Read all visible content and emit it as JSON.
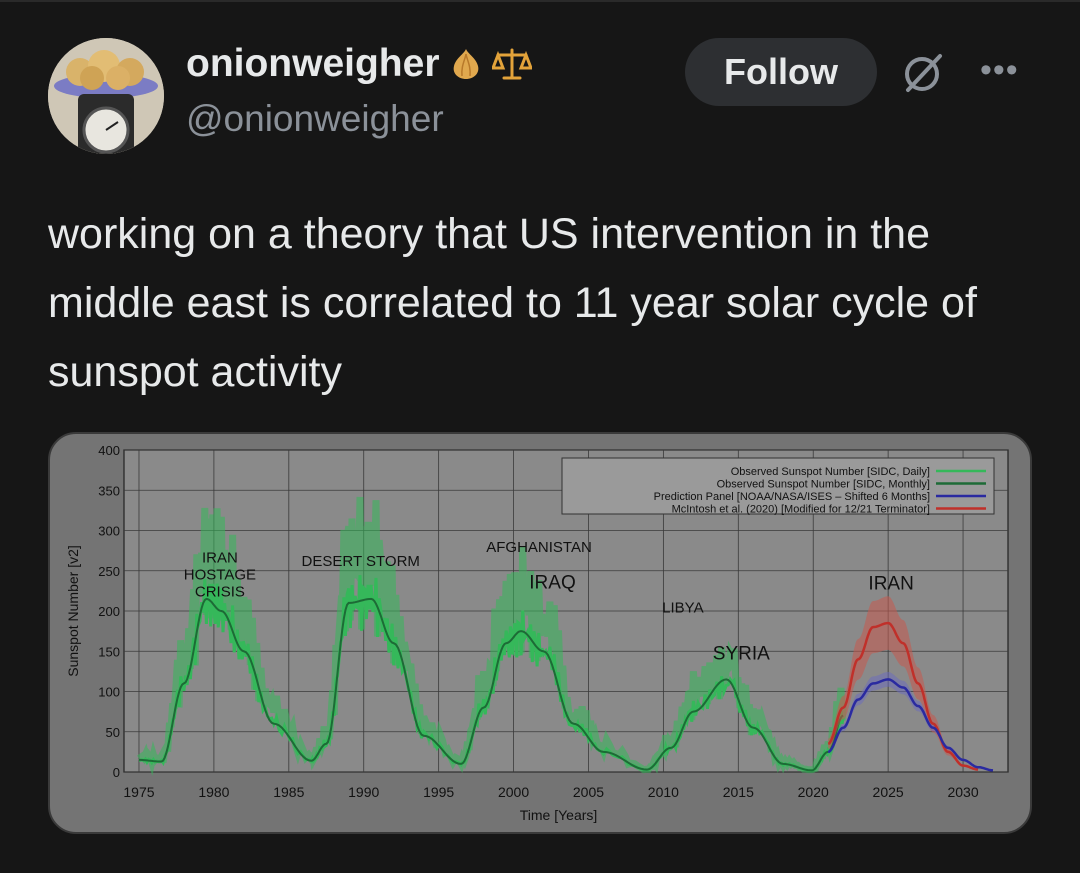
{
  "author": {
    "name": "onionweigher",
    "handle": "@onionweigher",
    "badges": [
      "onion-icon",
      "scales-icon"
    ]
  },
  "actions": {
    "follow_label": "Follow",
    "grok_icon": "grok-icon",
    "more_icon": "more-icon"
  },
  "tweet": {
    "text": "working on a theory that US intervention in the middle east is correlated to 11 year solar cycle of sunspot activity"
  },
  "chart_data": {
    "type": "line",
    "xlabel": "Time [Years]",
    "ylabel": "Sunspot Number [v2]",
    "xlim": [
      1974,
      2033
    ],
    "ylim": [
      0,
      400
    ],
    "x_ticks": [
      "1975",
      "1980",
      "1985",
      "1990",
      "1995",
      "2000",
      "2005",
      "2010",
      "2015",
      "2020",
      "2025",
      "2030"
    ],
    "y_ticks": [
      "0",
      "50",
      "100",
      "150",
      "200",
      "250",
      "300",
      "350",
      "400"
    ],
    "grid": true,
    "legend_position": "top-right",
    "legend": [
      {
        "label": "Observed Sunspot Number [SIDC, Daily]",
        "color": "#35b85a"
      },
      {
        "label": "Observed Sunspot Number [SIDC, Monthly]",
        "color": "#1d6b36"
      },
      {
        "label": "Prediction Panel [NOAA/NASA/ISES – Shifted 6 Months]",
        "color": "#2a2aa0"
      },
      {
        "label": "McIntosh et al. (2020) [Modified for 12/21 Terminator]",
        "color": "#c0302a"
      }
    ],
    "series": [
      {
        "name": "Observed Sunspot Number [SIDC, Monthly]",
        "x": [
          1975,
          1976.5,
          1978,
          1979.5,
          1980.5,
          1982,
          1984,
          1986.5,
          1987.5,
          1989,
          1990.5,
          1992,
          1994,
          1996.5,
          1998,
          1999.5,
          2000.5,
          2002,
          2004,
          2006,
          2008.9,
          2010.5,
          2012,
          2014.2,
          2016,
          2018,
          2019.9,
          2021,
          2022
        ],
        "values": [
          15,
          13,
          110,
          215,
          200,
          150,
          60,
          14,
          35,
          210,
          215,
          160,
          45,
          10,
          80,
          160,
          175,
          150,
          60,
          25,
          3,
          30,
          75,
          115,
          55,
          10,
          2,
          25,
          70
        ]
      },
      {
        "name": "Prediction Panel [NOAA/NASA/ISES – Shifted 6 Months]",
        "x": [
          2021,
          2022,
          2023,
          2024,
          2025,
          2026,
          2027,
          2028,
          2029,
          2030,
          2031,
          2032
        ],
        "values": [
          25,
          55,
          90,
          110,
          115,
          105,
          82,
          55,
          30,
          15,
          6,
          2
        ]
      },
      {
        "name": "McIntosh et al. (2020) [Modified for 12/21 Terminator]",
        "x": [
          2021,
          2022,
          2023,
          2024,
          2025,
          2026,
          2027,
          2028,
          2029,
          2030,
          2031
        ],
        "values": [
          35,
          80,
          140,
          180,
          185,
          160,
          110,
          60,
          25,
          8,
          3
        ]
      }
    ],
    "annotations": [
      {
        "text": "IRAN HOSTAGE CRISIS",
        "lines": [
          "IRAN",
          "HOSTAGE",
          "CRISIS"
        ],
        "x": 1980.4,
        "y": 260
      },
      {
        "text": "DESERT STORM",
        "x": 1989.8,
        "y": 256
      },
      {
        "text": "AFGHANISTAN",
        "x": 2001.7,
        "y": 273
      },
      {
        "text": "IRAQ",
        "x": 2002.6,
        "y": 228
      },
      {
        "text": "LIBYA",
        "x": 2011.3,
        "y": 198
      },
      {
        "text": "SYRIA",
        "x": 2015.2,
        "y": 140
      },
      {
        "text": "IRAN",
        "x": 2025.2,
        "y": 227
      }
    ]
  }
}
